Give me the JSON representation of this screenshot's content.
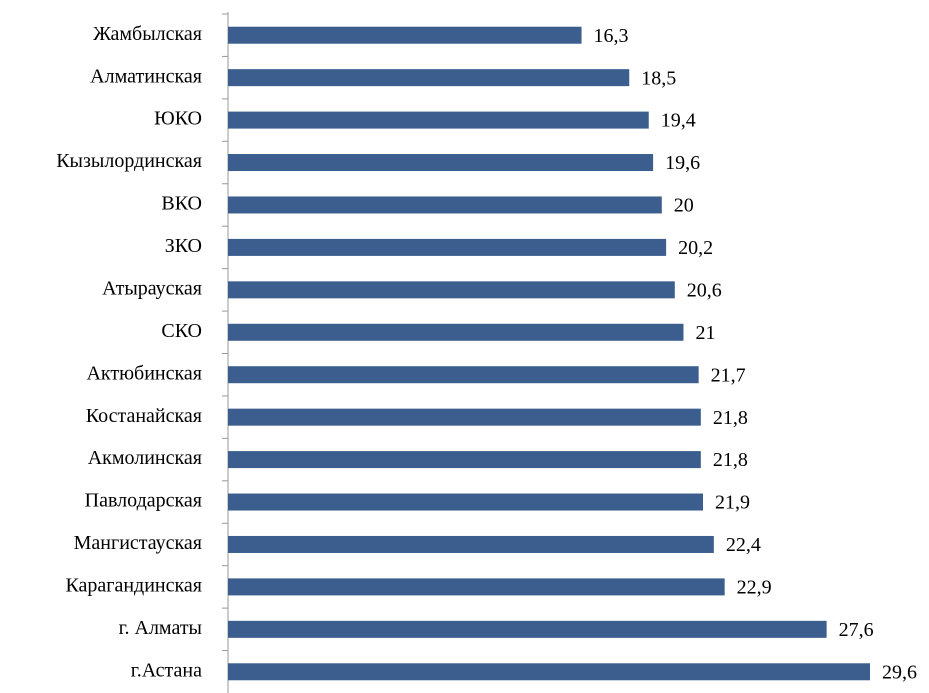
{
  "chart_data": {
    "type": "hbar",
    "categories": [
      "Жамбылская",
      "Алматинская",
      "ЮКО",
      "Кызылординская",
      "ВКО",
      "ЗКО",
      "Атырауская",
      "СКО",
      "Актюбинская",
      "Костанайская",
      "Акмолинская",
      "Павлодарская",
      "Мангистауская",
      "Карагандинская",
      "г. Алматы",
      "г.Астана"
    ],
    "values": [
      16.3,
      18.5,
      19.4,
      19.6,
      20,
      20.2,
      20.6,
      21,
      21.7,
      21.8,
      21.8,
      21.9,
      22.4,
      22.9,
      27.6,
      29.6
    ],
    "value_labels": [
      "16,3",
      "18,5",
      "19,4",
      "19,6",
      "20",
      "20,2",
      "20,6",
      "21",
      "21,7",
      "21,8",
      "21,8",
      "21,9",
      "22,4",
      "22,9",
      "27,6",
      "29,6"
    ],
    "color": "#3b5e8f"
  }
}
